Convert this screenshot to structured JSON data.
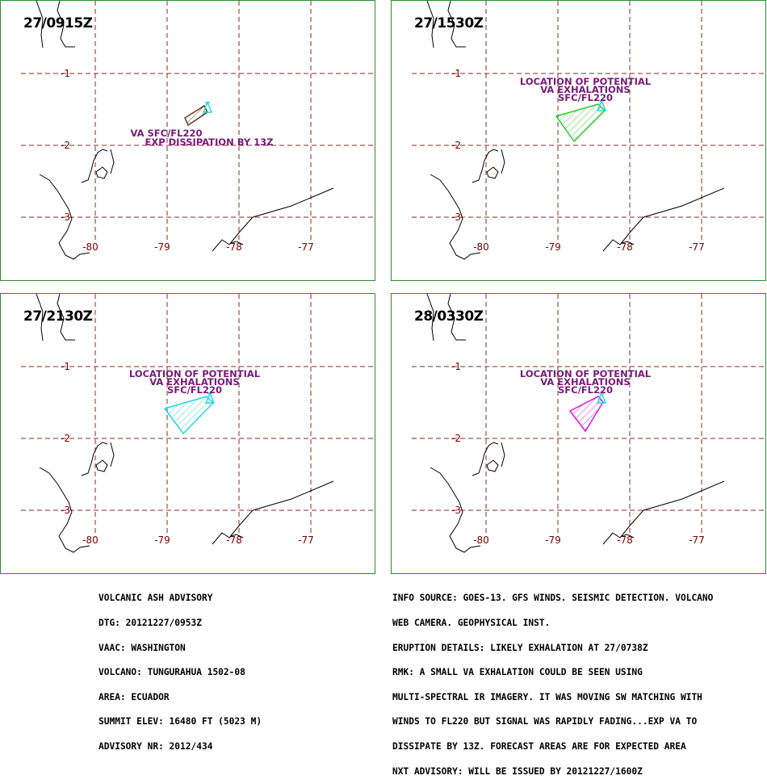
{
  "panels": [
    {
      "time": "27/0915Z",
      "label_lines": [
        "VA SFC/FL220",
        "EXP DISSIPATION BY 13Z"
      ],
      "label_color": "#7a1a7a",
      "polygon_color": "#6b3a1a",
      "polygon_points": [
        [
          228,
          145
        ],
        [
          252,
          130
        ],
        [
          256,
          138
        ],
        [
          232,
          154
        ]
      ]
    },
    {
      "time": "27/1530Z",
      "label_lines": [
        "LOCATION OF POTENTIAL",
        "VA EXHALATIONS",
        "SFC/FL220"
      ],
      "label_color": "#7a1a7a",
      "polygon_color": "#2ecc2e",
      "polygon_points": [
        [
          688,
          143
        ],
        [
          740,
          128
        ],
        [
          748,
          136
        ],
        [
          710,
          174
        ]
      ]
    },
    {
      "time": "27/2130Z",
      "label_lines": [
        "LOCATION OF POTENTIAL",
        "VA EXHALATIONS",
        "SFC/FL220"
      ],
      "label_color": "#7a1a7a",
      "polygon_color": "#22d8e0",
      "polygon_points": [
        [
          203,
          505
        ],
        [
          255,
          490
        ],
        [
          263,
          498
        ],
        [
          226,
          536
        ]
      ]
    },
    {
      "time": "28/0330Z",
      "label_lines": [
        "LOCATION OF POTENTIAL",
        "VA EXHALATIONS",
        "SFC/FL220"
      ],
      "label_color": "#7a1a7a",
      "polygon_color": "#d81ed8",
      "polygon_points": [
        [
          705,
          508
        ],
        [
          740,
          490
        ],
        [
          746,
          497
        ],
        [
          724,
          533
        ]
      ]
    }
  ],
  "axis": {
    "lon_labels": [
      "-80",
      "-79",
      "-78",
      "-77"
    ],
    "lat_labels": [
      "-1",
      "-2",
      "-3"
    ],
    "grid_color": "#8b2a2a",
    "label_color": "#7a0000"
  },
  "info_left": [
    "VOLCANIC ASH ADVISORY",
    "DTG: 20121227/0953Z",
    "VAAC: WASHINGTON",
    "VOLCANO: TUNGURAHUA 1502-08",
    "AREA: ECUADOR",
    "SUMMIT ELEV: 16480 FT (5023 M)",
    "ADVISORY NR: 2012/434"
  ],
  "info_right": [
    "INFO SOURCE: GOES-13. GFS WINDS. SEISMIC DETECTION. VOLCANO",
    "WEB CAMERA. GEOPHYSICAL INST.",
    "ERUPTION DETAILS: LIKELY EXHALATION AT 27/0738Z",
    "RMK: A SMALL VA EXHALATION COULD BE SEEN USING",
    "MULTI-SPECTRAL IR IMAGERY. IT WAS MOVING SW MATCHING WITH",
    "WINDS TO FL220 BUT SIGNAL WAS RAPIDLY FADING...EXP VA TO",
    "DISSIPATE BY 13Z. FORECAST AREAS ARE FOR EXPECTED AREA",
    "NXT ADVISORY: WILL BE ISSUED BY 20121227/1600Z"
  ]
}
